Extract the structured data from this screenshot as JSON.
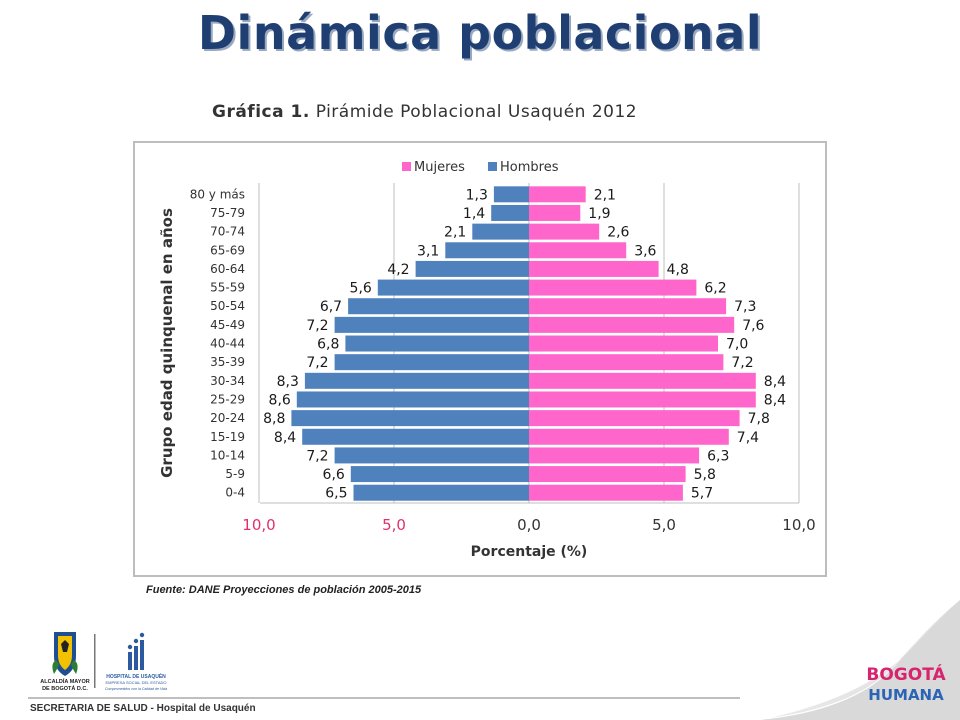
{
  "slide": {
    "title": "Dinámica poblacional",
    "chart_heading_bold": "Gráfica 1.",
    "chart_heading_rest": " Pirámide Poblacional Usaquén 2012",
    "source_note": "Fuente: DANE Proyecciones de población 2005-2015",
    "footer_text": "SECRETARIA DE SALUD - Hospital de Usaquén"
  },
  "logos": {
    "alcaldia_line1": "ALCALDÍA MAYOR",
    "alcaldia_line2": "DE BOGOTÁ D.C.",
    "hospital_line1": "HOSPITAL DE USAQUÉN",
    "hospital_line2": "EMPRESA SOCIAL DEL ESTADO",
    "hospital_line3": "Comprometidos con la Calidad de Vida",
    "brand_line1": "BOGOTÁ",
    "brand_line2": "HUMANA"
  },
  "colors": {
    "hombres": "#4f81bd",
    "mujeres": "#ff66cc",
    "left_tick_labels": "#e0306e",
    "title": "#1f3f73"
  },
  "chart_data": {
    "type": "bar",
    "orientation": "horizontal",
    "layout": "population-pyramid",
    "categories": [
      "80 y más",
      "75-79",
      "70-74",
      "65-69",
      "60-64",
      "55-59",
      "50-54",
      "45-49",
      "40-44",
      "35-39",
      "30-34",
      "25-29",
      "20-24",
      "15-19",
      "10-14",
      "5-9",
      "0-4"
    ],
    "series": [
      {
        "name": "Mujeres",
        "side": "right",
        "values": [
          2.1,
          1.9,
          2.6,
          3.6,
          4.8,
          6.2,
          7.3,
          7.6,
          7.0,
          7.2,
          8.4,
          8.4,
          7.8,
          7.4,
          6.3,
          5.8,
          5.7
        ],
        "labels": [
          "2,1",
          "1,9",
          "2,6",
          "3,6",
          "4,8",
          "6,2",
          "7,3",
          "7,6",
          "7,0",
          "7,2",
          "8,4",
          "8,4",
          "7,8",
          "7,4",
          "6,3",
          "5,8",
          "5,7"
        ]
      },
      {
        "name": "Hombres",
        "side": "left",
        "values": [
          1.3,
          1.4,
          2.1,
          3.1,
          4.2,
          5.6,
          6.7,
          7.2,
          6.8,
          7.2,
          8.3,
          8.6,
          8.8,
          8.4,
          7.2,
          6.6,
          6.5
        ],
        "labels": [
          "1,3",
          "1,4",
          "2,1",
          "3,1",
          "4,2",
          "5,6",
          "6,7",
          "7,2",
          "6,8",
          "7,2",
          "8,3",
          "8,6",
          "8,8",
          "8,4",
          "7,2",
          "6,6",
          "6,5"
        ]
      }
    ],
    "legend": [
      "Mujeres",
      "Hombres"
    ],
    "legend_position": "top",
    "xlim": [
      -10,
      10
    ],
    "xticks": [
      -10,
      -5,
      0,
      5,
      10
    ],
    "xtick_labels": [
      "10,0",
      "5,0",
      "0,0",
      "5,0",
      "10,0"
    ],
    "xlabel": "Porcentaje (%)",
    "ylabel": "Grupo edad quinquenal en años",
    "grid": "vertical"
  }
}
